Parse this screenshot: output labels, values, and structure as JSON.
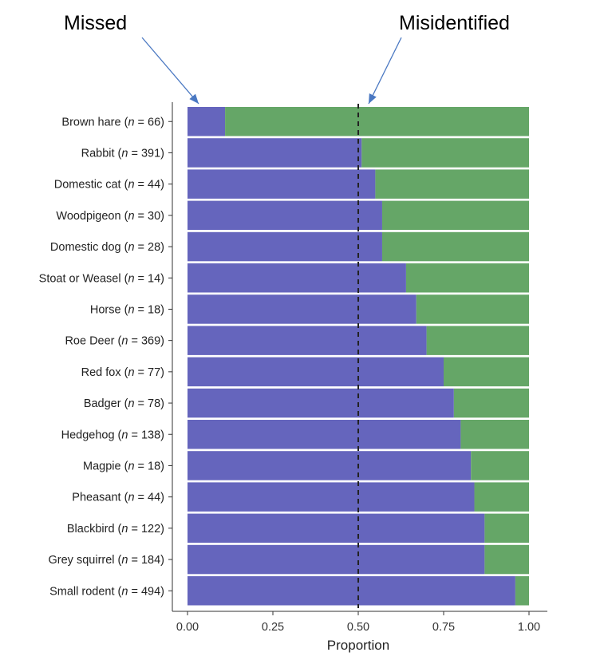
{
  "chart_data": {
    "type": "bar",
    "stacked": true,
    "orientation": "horizontal",
    "categories": [
      {
        "name": "Brown hare",
        "n": "66"
      },
      {
        "name": "Rabbit",
        "n": "391"
      },
      {
        "name": "Domestic cat",
        "n": "44"
      },
      {
        "name": "Woodpigeon",
        "n": "30"
      },
      {
        "name": "Domestic dog",
        "n": "28"
      },
      {
        "name": "Stoat or Weasel",
        "n": "14"
      },
      {
        "name": "Horse",
        "n": "18"
      },
      {
        "name": "Roe Deer",
        "n": "369"
      },
      {
        "name": "Red fox",
        "n": "77"
      },
      {
        "name": "Badger",
        "n": "78"
      },
      {
        "name": "Hedgehog",
        "n": "138"
      },
      {
        "name": "Magpie",
        "n": "18"
      },
      {
        "name": "Pheasant",
        "n": "44"
      },
      {
        "name": "Blackbird",
        "n": "122"
      },
      {
        "name": "Grey squirrel",
        "n": "184"
      },
      {
        "name": "Small rodent",
        "n": "494"
      }
    ],
    "series": [
      {
        "values": [
          0.11,
          0.51,
          0.55,
          0.57,
          0.57,
          0.64,
          0.67,
          0.7,
          0.75,
          0.78,
          0.8,
          0.83,
          0.84,
          0.87,
          0.87,
          0.96
        ],
        "color": "#6565bd"
      },
      {
        "values": [
          0.89,
          0.49,
          0.45,
          0.43,
          0.43,
          0.36,
          0.33,
          0.3,
          0.25,
          0.22,
          0.2,
          0.17,
          0.16,
          0.13,
          0.13,
          0.04
        ],
        "color": "#65a667"
      }
    ],
    "xlabel": "Proportion",
    "xlim": [
      0,
      1
    ],
    "xticks": [
      "0.00",
      "0.25",
      "0.50",
      "0.75",
      "1.00"
    ],
    "reference_line": {
      "x": 0.5,
      "style": "dashed"
    },
    "annotations": {
      "left": "Missed",
      "right": "Misidentified"
    }
  }
}
